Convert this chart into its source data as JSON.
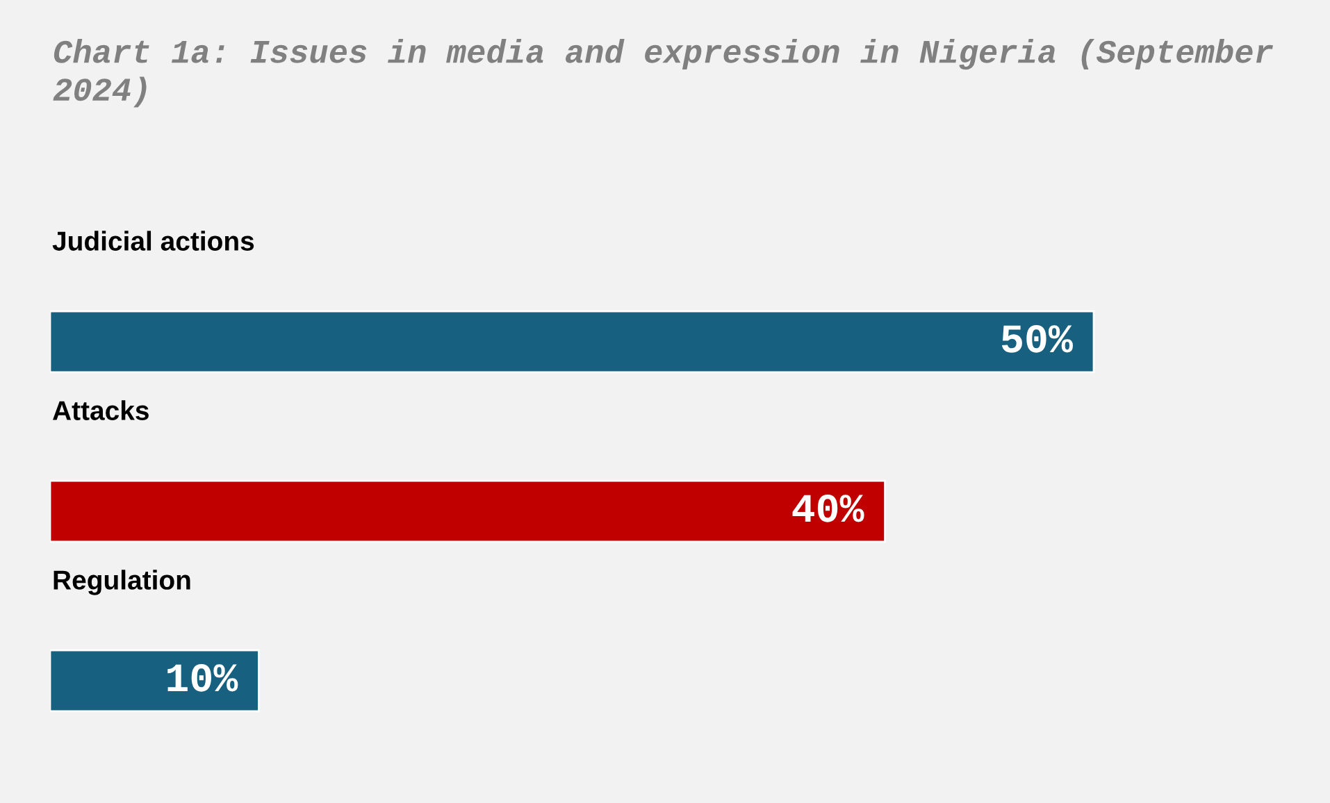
{
  "chart_data": {
    "type": "bar",
    "orientation": "horizontal",
    "title": "Chart 1a: Issues in media and expression in Nigeria (September 2024)",
    "categories": [
      "Judicial actions",
      "Attacks",
      "Regulation"
    ],
    "values": [
      50,
      40,
      10
    ],
    "colors": [
      "#17607f",
      "#c00000",
      "#17607f"
    ],
    "value_labels": [
      "50%",
      "40%",
      "10%"
    ]
  }
}
